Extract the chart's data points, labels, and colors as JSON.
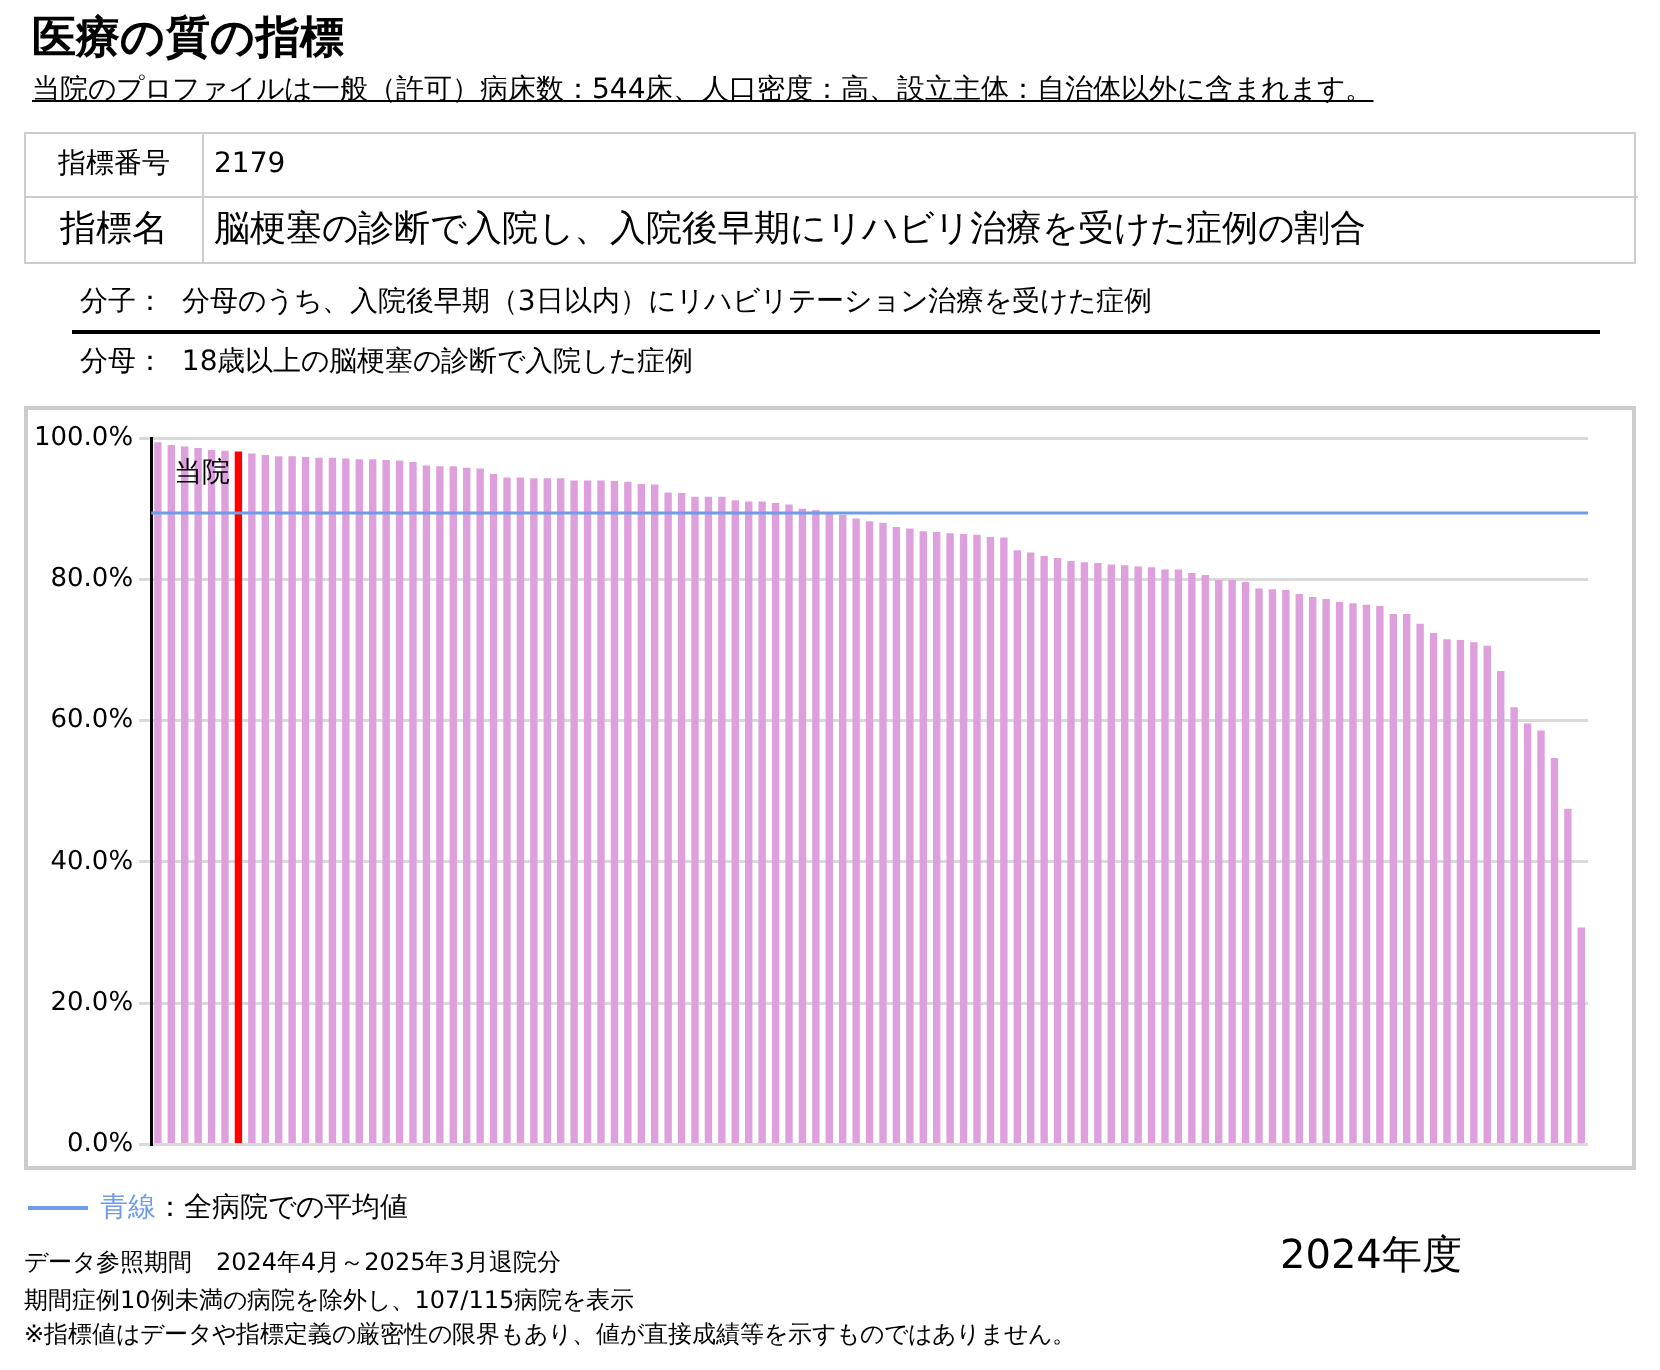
{
  "chart_data": {
    "type": "bar",
    "title": "医療の質の指標",
    "subtitle": "当院のプロファイルは一般（許可）病床数：544床、人口密度：高、設立主体：自治体以外に含まれます。",
    "categories": [
      null,
      null,
      null,
      null,
      null,
      null,
      null,
      null,
      null,
      null,
      null,
      null,
      null,
      null,
      null,
      null,
      null,
      null,
      null,
      null,
      null,
      null,
      null,
      null,
      null,
      null,
      null,
      null,
      null,
      null,
      null,
      null,
      null,
      null,
      null,
      null,
      null,
      null,
      null,
      null,
      null,
      null,
      null,
      null,
      null,
      null,
      null,
      null,
      null,
      null,
      null,
      null,
      null,
      null,
      null,
      null,
      null,
      null,
      null,
      null,
      null,
      null,
      null,
      null,
      null,
      null,
      null,
      null,
      null,
      null,
      null,
      null,
      null,
      null,
      null,
      null,
      null,
      null,
      null,
      null,
      null,
      null,
      null,
      null,
      null,
      null,
      null,
      null,
      null,
      null,
      null,
      null,
      null,
      null,
      null,
      null,
      null,
      null,
      null,
      null,
      null,
      null,
      null,
      null,
      null,
      null,
      null
    ],
    "values": [
      99.4,
      99.0,
      98.8,
      98.6,
      98.3,
      98.2,
      98.1,
      97.8,
      97.6,
      97.4,
      97.4,
      97.3,
      97.2,
      97.2,
      97.1,
      97.0,
      97.0,
      96.9,
      96.8,
      96.6,
      96.1,
      96.0,
      96.0,
      95.8,
      95.7,
      94.9,
      94.4,
      94.4,
      94.3,
      94.3,
      94.3,
      94.0,
      94.0,
      94.0,
      93.9,
      93.8,
      93.5,
      93.4,
      92.3,
      92.2,
      91.7,
      91.7,
      91.7,
      91.2,
      91.0,
      91.0,
      90.8,
      90.6,
      90.0,
      89.8,
      89.3,
      89.1,
      88.6,
      88.2,
      88.0,
      87.4,
      87.2,
      86.8,
      86.7,
      86.5,
      86.4,
      86.3,
      86.0,
      85.9,
      84.1,
      83.8,
      83.3,
      83.0,
      82.6,
      82.4,
      82.3,
      82.1,
      82.0,
      81.8,
      81.7,
      81.4,
      81.4,
      80.9,
      80.6,
      79.9,
      79.9,
      79.6,
      78.7,
      78.6,
      78.5,
      77.9,
      77.5,
      77.2,
      76.8,
      76.6,
      76.4,
      76.2,
      75.1,
      75.1,
      73.7,
      72.4,
      71.5,
      71.4,
      71.1,
      70.6,
      67.0,
      61.9,
      59.6,
      58.6,
      54.7,
      47.5,
      30.7
    ],
    "colors": [
      "#dda0dd",
      "#dda0dd",
      "#dda0dd",
      "#dda0dd",
      "#dda0dd",
      "#dda0dd",
      "#ff0000",
      "#dda0dd",
      "#dda0dd",
      "#dda0dd",
      "#dda0dd",
      "#dda0dd",
      "#dda0dd",
      "#dda0dd",
      "#dda0dd",
      "#dda0dd",
      "#dda0dd",
      "#dda0dd",
      "#dda0dd",
      "#dda0dd",
      "#dda0dd",
      "#dda0dd",
      "#dda0dd",
      "#dda0dd",
      "#dda0dd",
      "#dda0dd",
      "#dda0dd",
      "#dda0dd",
      "#dda0dd",
      "#dda0dd",
      "#dda0dd",
      "#dda0dd",
      "#dda0dd",
      "#dda0dd",
      "#dda0dd",
      "#dda0dd",
      "#dda0dd",
      "#dda0dd",
      "#dda0dd",
      "#dda0dd",
      "#dda0dd",
      "#dda0dd",
      "#dda0dd",
      "#dda0dd",
      "#dda0dd",
      "#dda0dd",
      "#dda0dd",
      "#dda0dd",
      "#dda0dd",
      "#dda0dd",
      "#dda0dd",
      "#dda0dd",
      "#dda0dd",
      "#dda0dd",
      "#dda0dd",
      "#dda0dd",
      "#dda0dd",
      "#dda0dd",
      "#dda0dd",
      "#dda0dd",
      "#dda0dd",
      "#dda0dd",
      "#dda0dd",
      "#dda0dd",
      "#dda0dd",
      "#dda0dd",
      "#dda0dd",
      "#dda0dd",
      "#dda0dd",
      "#dda0dd",
      "#dda0dd",
      "#dda0dd",
      "#dda0dd",
      "#dda0dd",
      "#dda0dd",
      "#dda0dd",
      "#dda0dd",
      "#dda0dd",
      "#dda0dd",
      "#dda0dd",
      "#dda0dd",
      "#dda0dd",
      "#dda0dd",
      "#dda0dd",
      "#dda0dd",
      "#dda0dd",
      "#dda0dd",
      "#dda0dd",
      "#dda0dd",
      "#dda0dd",
      "#dda0dd",
      "#dda0dd",
      "#dda0dd",
      "#dda0dd",
      "#dda0dd",
      "#dda0dd",
      "#dda0dd",
      "#dda0dd",
      "#dda0dd",
      "#dda0dd",
      "#dda0dd",
      "#dda0dd",
      "#dda0dd",
      "#dda0dd",
      "#dda0dd",
      "#dda0dd",
      "#dda0dd"
    ],
    "ylim": [
      0,
      100
    ],
    "yticks": [
      {
        "value": 0,
        "label": "0.0%"
      },
      {
        "value": 20,
        "label": "20.0%"
      },
      {
        "value": 40,
        "label": "40.0%"
      },
      {
        "value": 60,
        "label": "60.0%"
      },
      {
        "value": 80,
        "label": "80.0%"
      },
      {
        "value": 100,
        "label": "100.0%"
      }
    ],
    "grid": "y",
    "legend": "bottom left",
    "ref_lines": [
      {
        "axis": "y",
        "value": 89.4,
        "label": "青線：全病院での平均値",
        "color": "#6f9be8"
      }
    ],
    "annotations": [
      {
        "text": "当院",
        "y": 95
      },
      "指標番号",
      "2179",
      "指標名",
      "脳梗塞の診断で入院し、入院後早期にリハビリ治療を受けた症例の割合",
      "分子：",
      "分母のうち、入院後早期（3日以内）にリハビリテーション治療を受けた症例",
      "分母：",
      "18歳以上の脳梗塞の診断で入院した症例",
      "データ参照期間　2024年4月～2025年3月退院分",
      "期間症例10例未満の病院を除外し、107/115病院を表示",
      "※指標値はデータや指標定義の厳密性の限界もあり、値が直接成績等を示すものではありません。",
      "2024年度"
    ]
  }
}
